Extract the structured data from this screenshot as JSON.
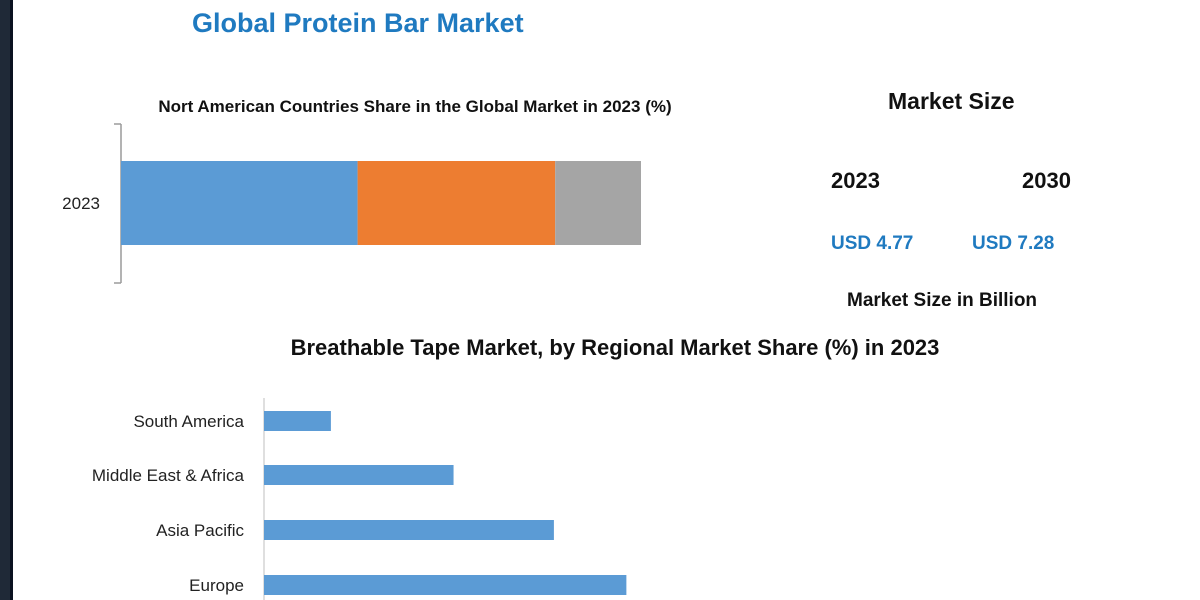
{
  "title": "Global Protein Bar Market",
  "market_size": {
    "heading": "Market Size",
    "year_1": "2023",
    "year_2": "2030",
    "value_1": "USD 4.77",
    "value_2": "USD 7.28",
    "unit": "Market Size in Billion"
  },
  "colors": {
    "accent_blue": "#1f7ac0",
    "series_blue": "#5b9bd5",
    "series_orange": "#ed7d31",
    "series_gray": "#a5a5a5"
  },
  "chart_data": [
    {
      "type": "bar",
      "stacked": true,
      "orientation": "horizontal",
      "title": "Nort American Countries Share in the Global Market in 2023 (%)",
      "categories": [
        "2023"
      ],
      "series": [
        {
          "values": [
            45.5
          ],
          "color": "#5b9bd5"
        },
        {
          "values": [
            38
          ],
          "color": "#ed7d31"
        },
        {
          "values": [
            16.5
          ],
          "color": "#a5a5a5"
        }
      ],
      "xlim": [
        0,
        100
      ],
      "legend": "none",
      "grid": false
    },
    {
      "type": "bar",
      "orientation": "horizontal",
      "title": "Breathable Tape Market, by Regional Market Share (%) in 2023",
      "categories": [
        "South America",
        "Middle East & Africa",
        "Asia Pacific",
        "Europe"
      ],
      "values": [
        6,
        17,
        26,
        32.5
      ],
      "color": "#5b9bd5",
      "legend": "none",
      "grid": false
    }
  ]
}
